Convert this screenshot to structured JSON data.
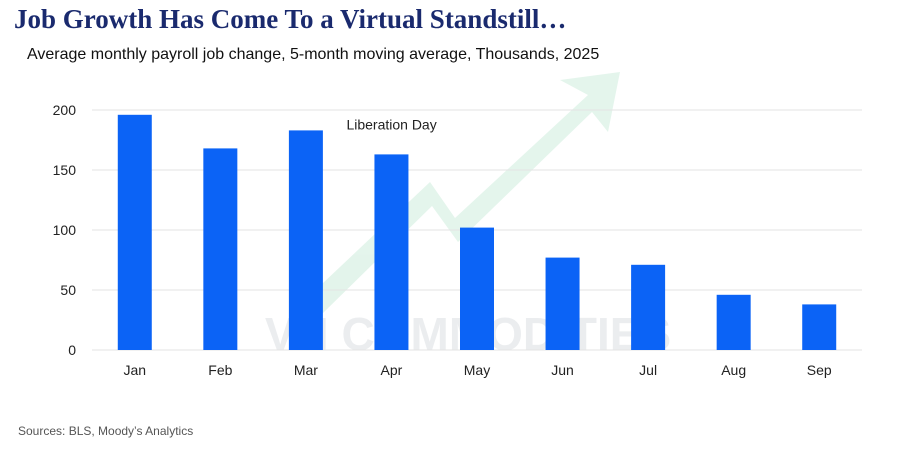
{
  "title": "Job Growth Has Come To a Virtual Standstill…",
  "subtitle": "Average monthly payroll job change, 5-month moving average, Thousands, 2025",
  "source": "Sources: BLS, Moody’s Analytics",
  "watermark": {
    "text": "VN COMMODITIES",
    "icon": "rising-arrow-icon"
  },
  "colors": {
    "bar": "#0b63f6",
    "title": "#1a2a6e",
    "grid": "#e3e3e3",
    "watermark": "#2fb36a"
  },
  "chart_data": {
    "type": "bar",
    "categories": [
      "Jan",
      "Feb",
      "Mar",
      "Apr",
      "May",
      "Jun",
      "Jul",
      "Aug",
      "Sep"
    ],
    "values": [
      196,
      168,
      183,
      163,
      102,
      77,
      71,
      46,
      38
    ],
    "yticks": [
      0,
      50,
      100,
      150,
      200
    ],
    "ylim": [
      0,
      200
    ],
    "grid": true,
    "annotations": [
      {
        "text": "Liberation Day",
        "category": "Apr",
        "value": 183
      }
    ]
  }
}
